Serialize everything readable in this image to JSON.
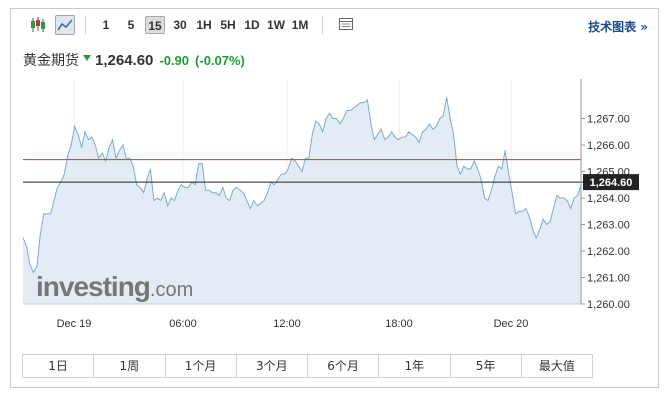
{
  "toolbar": {
    "candle_icon": "candlestick-icon",
    "area_icon": "area-chart-icon",
    "intervals": [
      "1",
      "5",
      "15",
      "30",
      "1H",
      "5H",
      "1D",
      "1W",
      "1M"
    ],
    "active_interval": "15",
    "settings_icon": "table-icon",
    "tech_chart_label": "技术图表 »"
  },
  "quote": {
    "name": "黄金期货",
    "price": "1,264.60",
    "change": "-0.90",
    "change_pct": "(-0.07%)"
  },
  "watermark": {
    "brand": "investing",
    "suffix": ".com"
  },
  "ranges": [
    "1日",
    "1周",
    "1个月",
    "3个月",
    "6个月",
    "1年",
    "5年",
    "最大值"
  ],
  "colors": {
    "line": "#7aabd2",
    "fill": "#e3ecf4",
    "up": "#1f9b39",
    "ref_line": "#c0392b",
    "current_label_bg": "#222222"
  },
  "chart_data": {
    "type": "area",
    "x_tick_labels": [
      "Dec 19",
      "06:00",
      "12:00",
      "18:00",
      "Dec 20"
    ],
    "y_tick_labels": [
      "1,260.00",
      "1,261.00",
      "1,262.00",
      "1,263.00",
      "1,264.00",
      "1,265.00",
      "1,266.00",
      "1,267.00"
    ],
    "ylim": [
      1260,
      1267.7
    ],
    "reference_level": 1265.45,
    "current_value": 1264.6,
    "current_label": "1,264.60",
    "values": [
      1262.5,
      1262.2,
      1261.5,
      1261.2,
      1261.4,
      1262.6,
      1263.4,
      1263.4,
      1263.4,
      1263.9,
      1264.4,
      1264.6,
      1264.9,
      1265.6,
      1266.0,
      1266.7,
      1266.4,
      1265.9,
      1266.5,
      1266.2,
      1266.3,
      1266.0,
      1265.5,
      1265.7,
      1265.4,
      1265.9,
      1266.2,
      1265.5,
      1265.8,
      1266.0,
      1265.5,
      1265.5,
      1265.2,
      1264.5,
      1264.4,
      1264.2,
      1264.7,
      1265.1,
      1263.9,
      1264.0,
      1263.9,
      1264.2,
      1263.7,
      1264.0,
      1263.9,
      1264.3,
      1264.5,
      1264.4,
      1264.4,
      1264.6,
      1264.5,
      1265.3,
      1265.3,
      1264.3,
      1264.3,
      1264.2,
      1264.2,
      1264.1,
      1264.4,
      1264.0,
      1263.9,
      1264.3,
      1264.4,
      1264.3,
      1264.2,
      1263.9,
      1263.6,
      1263.9,
      1263.7,
      1263.8,
      1263.9,
      1264.2,
      1264.6,
      1264.5,
      1264.7,
      1264.9,
      1264.9,
      1265.1,
      1265.5,
      1265.4,
      1265.2,
      1265.0,
      1265.5,
      1265.5,
      1266.4,
      1266.9,
      1266.8,
      1266.5,
      1267.0,
      1267.2,
      1267.0,
      1267.0,
      1266.8,
      1267.0,
      1267.3,
      1267.3,
      1267.4,
      1267.5,
      1267.6,
      1267.6,
      1267.7,
      1266.8,
      1266.2,
      1266.4,
      1266.6,
      1266.2,
      1266.3,
      1266.5,
      1266.3,
      1266.2,
      1266.3,
      1266.3,
      1266.5,
      1266.4,
      1266.3,
      1266.1,
      1266.5,
      1266.6,
      1266.8,
      1266.6,
      1266.7,
      1267.0,
      1267.1,
      1267.8,
      1267.0,
      1266.4,
      1265.2,
      1264.9,
      1265.2,
      1265.1,
      1265.1,
      1265.4,
      1265.1,
      1264.7,
      1264.0,
      1263.9,
      1264.3,
      1264.8,
      1265.2,
      1265.1,
      1265.8,
      1264.9,
      1264.2,
      1263.4,
      1263.5,
      1263.5,
      1263.6,
      1263.3,
      1262.8,
      1262.5,
      1262.8,
      1263.2,
      1263.0,
      1263.1,
      1263.6,
      1264.1,
      1264.0,
      1264.0,
      1263.9,
      1263.6,
      1264.0,
      1264.1,
      1264.5
    ]
  }
}
